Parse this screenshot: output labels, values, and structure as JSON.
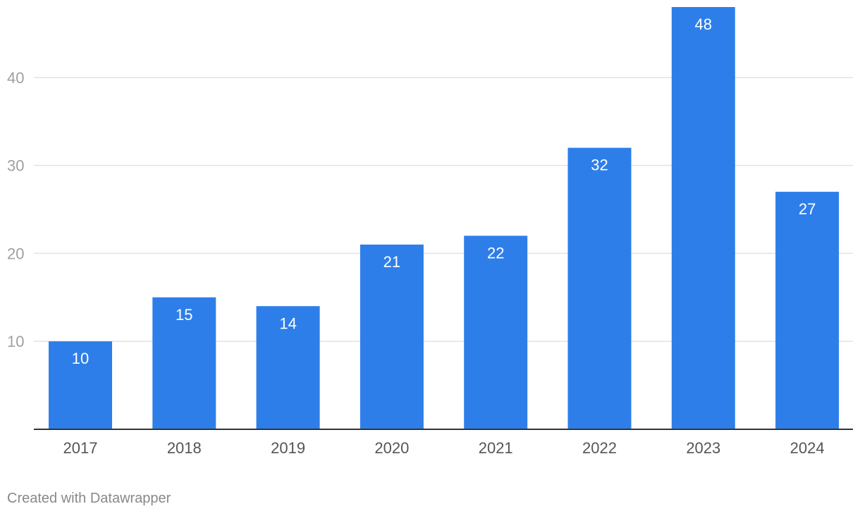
{
  "chart_data": {
    "type": "bar",
    "title": "",
    "xlabel": "",
    "ylabel": "",
    "categories": [
      "2017",
      "2018",
      "2019",
      "2020",
      "2021",
      "2022",
      "2023",
      "2024"
    ],
    "values": [
      10,
      15,
      14,
      21,
      22,
      32,
      48,
      27
    ],
    "ylim": [
      0,
      48
    ],
    "yticks": [
      10,
      20,
      30,
      40
    ],
    "grid": true,
    "data_labels": true,
    "bar_color": "#2e7eea"
  },
  "footer": {
    "credit": "Created with Datawrapper"
  }
}
